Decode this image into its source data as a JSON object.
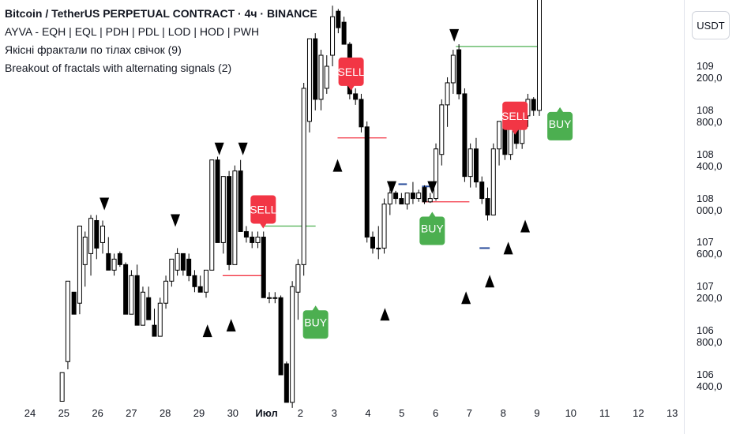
{
  "legend": {
    "title": "Bitcoin / TetherUS PERPETUAL CONTRACT · 4ч · BINANCE",
    "line2": "AYVA - EQH | EQL | PDH | PDL | LOD | HOD | PWH",
    "line3": "Якісні фрактали по тілах свічок (9)",
    "line4": "Breakout of fractals with alternating signals (2)"
  },
  "currency_button": "USDT",
  "colors": {
    "up_body": "#ffffff",
    "down_body": "#000000",
    "sell": "#f23645",
    "buy": "#4caf50",
    "level_red": "#f23645",
    "level_green": "#4caf50",
    "eq_blue": "#2a4d9b"
  },
  "chart_data": {
    "type": "candlestick",
    "yaxis_ticks": [
      "109 200,0",
      "108 800,0",
      "108 400,0",
      "108 000,0",
      "107 600,0",
      "107 200,0",
      "106 800,0",
      "106 400,0"
    ],
    "xaxis_ticks": [
      "24",
      "25",
      "26",
      "27",
      "28",
      "29",
      "30",
      "Июл",
      "2",
      "3",
      "4",
      "5",
      "6",
      "7",
      "8",
      "9",
      "10",
      "11",
      "12",
      "13"
    ],
    "ylim": [
      106100,
      109800
    ],
    "candles": [
      {
        "day": 24.95,
        "o": 106160,
        "h": 106420,
        "l": 106160,
        "c": 106420
      },
      {
        "day": 25.12,
        "o": 106520,
        "h": 107250,
        "l": 106450,
        "c": 107250
      },
      {
        "day": 25.3,
        "o": 107150,
        "h": 107150,
        "l": 106950,
        "c": 106950
      },
      {
        "day": 25.47,
        "o": 107050,
        "h": 107750,
        "l": 106950,
        "c": 107750
      },
      {
        "day": 25.63,
        "o": 107400,
        "h": 107700,
        "l": 107200,
        "c": 107650
      },
      {
        "day": 25.8,
        "o": 107500,
        "h": 107850,
        "l": 107300,
        "c": 107820
      },
      {
        "day": 25.97,
        "o": 107800,
        "h": 107850,
        "l": 107450,
        "c": 107550
      },
      {
        "day": 26.15,
        "o": 107600,
        "h": 107800,
        "l": 107500,
        "c": 107750
      },
      {
        "day": 26.32,
        "o": 107500,
        "h": 107650,
        "l": 107350,
        "c": 107350
      },
      {
        "day": 26.49,
        "o": 107350,
        "h": 107500,
        "l": 107300,
        "c": 107450
      },
      {
        "day": 26.66,
        "o": 107500,
        "h": 107520,
        "l": 107380,
        "c": 107400
      },
      {
        "day": 26.83,
        "o": 107400,
        "h": 107420,
        "l": 106950,
        "c": 106950
      },
      {
        "day": 27.0,
        "o": 106950,
        "h": 107350,
        "l": 106950,
        "c": 107300
      },
      {
        "day": 27.17,
        "o": 107300,
        "h": 107400,
        "l": 106850,
        "c": 106850
      },
      {
        "day": 27.34,
        "o": 106850,
        "h": 107200,
        "l": 106850,
        "c": 107150
      },
      {
        "day": 27.51,
        "o": 107100,
        "h": 107200,
        "l": 106900,
        "c": 106900
      },
      {
        "day": 27.68,
        "o": 106850,
        "h": 107000,
        "l": 106750,
        "c": 106750
      },
      {
        "day": 27.85,
        "o": 106750,
        "h": 107100,
        "l": 106750,
        "c": 107050
      },
      {
        "day": 28.02,
        "o": 107050,
        "h": 107300,
        "l": 107000,
        "c": 107250
      },
      {
        "day": 28.19,
        "o": 107250,
        "h": 107450,
        "l": 107200,
        "c": 107450
      },
      {
        "day": 28.36,
        "o": 107350,
        "h": 107550,
        "l": 107300,
        "c": 107500
      },
      {
        "day": 28.53,
        "o": 107500,
        "h": 107500,
        "l": 107300,
        "c": 107350
      },
      {
        "day": 28.7,
        "o": 107450,
        "h": 107500,
        "l": 107250,
        "c": 107300
      },
      {
        "day": 28.87,
        "o": 107300,
        "h": 107350,
        "l": 107150,
        "c": 107200
      },
      {
        "day": 29.04,
        "o": 107200,
        "h": 107300,
        "l": 107150,
        "c": 107150
      },
      {
        "day": 29.21,
        "o": 107150,
        "h": 107350,
        "l": 107100,
        "c": 107350
      },
      {
        "day": 29.38,
        "o": 107350,
        "h": 108350,
        "l": 107350,
        "c": 108350
      },
      {
        "day": 29.55,
        "o": 108350,
        "h": 108380,
        "l": 107600,
        "c": 107600
      },
      {
        "day": 29.72,
        "o": 107600,
        "h": 108200,
        "l": 107500,
        "c": 108200
      },
      {
        "day": 29.89,
        "o": 108200,
        "h": 108250,
        "l": 107350,
        "c": 107400
      },
      {
        "day": 30.06,
        "o": 107400,
        "h": 108300,
        "l": 107400,
        "c": 108250
      },
      {
        "day": 30.23,
        "o": 108250,
        "h": 108350,
        "l": 107700,
        "c": 107700
      },
      {
        "day": 30.4,
        "o": 107700,
        "h": 107750,
        "l": 107600,
        "c": 107650
      },
      {
        "day": 30.57,
        "o": 107650,
        "h": 107700,
        "l": 107550,
        "c": 107600
      },
      {
        "day": 30.74,
        "o": 107600,
        "h": 107700,
        "l": 107550,
        "c": 107650
      },
      {
        "day": 30.91,
        "o": 107650,
        "h": 107700,
        "l": 107100,
        "c": 107100
      },
      {
        "day": 31.08,
        "o": 107100,
        "h": 107150,
        "l": 107050,
        "c": 107100
      },
      {
        "day": 31.25,
        "o": 107100,
        "h": 107150,
        "l": 107050,
        "c": 107100
      },
      {
        "day": 31.42,
        "o": 107100,
        "h": 107120,
        "l": 106400,
        "c": 106400
      },
      {
        "day": 31.59,
        "o": 106500,
        "h": 106520,
        "l": 106150,
        "c": 106150
      },
      {
        "day": 31.76,
        "o": 106150,
        "h": 107250,
        "l": 106100,
        "c": 107200
      },
      {
        "day": 31.93,
        "o": 107150,
        "h": 107450,
        "l": 106900,
        "c": 107400
      },
      {
        "day": 32.1,
        "o": 107400,
        "h": 109050,
        "l": 107300,
        "c": 109000
      },
      {
        "day": 32.27,
        "o": 108700,
        "h": 109450,
        "l": 108600,
        "c": 109450
      },
      {
        "day": 32.44,
        "o": 109450,
        "h": 109500,
        "l": 108800,
        "c": 108900
      },
      {
        "day": 32.61,
        "o": 108900,
        "h": 109350,
        "l": 108800,
        "c": 109300
      },
      {
        "day": 32.78,
        "o": 109000,
        "h": 109300,
        "l": 108950,
        "c": 109200
      },
      {
        "day": 32.95,
        "o": 109300,
        "h": 109750,
        "l": 109200,
        "c": 109650
      },
      {
        "day": 33.12,
        "o": 109700,
        "h": 109720,
        "l": 109500,
        "c": 109550
      },
      {
        "day": 33.29,
        "o": 109600,
        "h": 109650,
        "l": 109400,
        "c": 109400
      },
      {
        "day": 33.46,
        "o": 109400,
        "h": 109420,
        "l": 108900,
        "c": 108950
      },
      {
        "day": 33.63,
        "o": 108950,
        "h": 109000,
        "l": 108850,
        "c": 108900
      },
      {
        "day": 33.8,
        "o": 108900,
        "h": 108950,
        "l": 108600,
        "c": 108650
      },
      {
        "day": 33.97,
        "o": 108650,
        "h": 108700,
        "l": 107600,
        "c": 107650
      },
      {
        "day": 34.14,
        "o": 107650,
        "h": 107700,
        "l": 107500,
        "c": 107550
      },
      {
        "day": 34.31,
        "o": 107550,
        "h": 107750,
        "l": 107450,
        "c": 107550
      },
      {
        "day": 34.48,
        "o": 107550,
        "h": 108000,
        "l": 107500,
        "c": 107950
      },
      {
        "day": 34.65,
        "o": 107950,
        "h": 108100,
        "l": 107850,
        "c": 108050
      },
      {
        "day": 34.82,
        "o": 108050,
        "h": 108070,
        "l": 107950,
        "c": 108000
      },
      {
        "day": 34.99,
        "o": 108000,
        "h": 108050,
        "l": 107950,
        "c": 107950
      },
      {
        "day": 35.16,
        "o": 107950,
        "h": 108050,
        "l": 107900,
        "c": 108050
      },
      {
        "day": 35.33,
        "o": 108050,
        "h": 108150,
        "l": 107950,
        "c": 108000
      },
      {
        "day": 35.5,
        "o": 108000,
        "h": 108080,
        "l": 107970,
        "c": 108050
      },
      {
        "day": 35.67,
        "o": 108100,
        "h": 108120,
        "l": 107950,
        "c": 107970
      },
      {
        "day": 35.84,
        "o": 107970,
        "h": 108050,
        "l": 107960,
        "c": 108000
      },
      {
        "day": 36.01,
        "o": 108000,
        "h": 108500,
        "l": 107980,
        "c": 108450
      },
      {
        "day": 36.18,
        "o": 108400,
        "h": 108900,
        "l": 108300,
        "c": 108850
      },
      {
        "day": 36.35,
        "o": 108850,
        "h": 109100,
        "l": 108650,
        "c": 109050
      },
      {
        "day": 36.52,
        "o": 109050,
        "h": 109350,
        "l": 108950,
        "c": 109300
      },
      {
        "day": 36.69,
        "o": 109350,
        "h": 109400,
        "l": 108900,
        "c": 108950
      },
      {
        "day": 36.86,
        "o": 108950,
        "h": 109000,
        "l": 108150,
        "c": 108200
      },
      {
        "day": 37.03,
        "o": 108200,
        "h": 108500,
        "l": 108100,
        "c": 108450
      },
      {
        "day": 37.2,
        "o": 108450,
        "h": 108550,
        "l": 108100,
        "c": 108150
      },
      {
        "day": 37.37,
        "o": 108150,
        "h": 108200,
        "l": 107950,
        "c": 108000
      },
      {
        "day": 37.54,
        "o": 108000,
        "h": 108100,
        "l": 107800,
        "c": 107850
      },
      {
        "day": 37.71,
        "o": 107850,
        "h": 108500,
        "l": 107850,
        "c": 108450
      },
      {
        "day": 37.88,
        "o": 108450,
        "h": 108700,
        "l": 108300,
        "c": 108700
      },
      {
        "day": 38.05,
        "o": 108700,
        "h": 108750,
        "l": 108350,
        "c": 108400
      },
      {
        "day": 38.22,
        "o": 108400,
        "h": 108750,
        "l": 108350,
        "c": 108700
      },
      {
        "day": 38.39,
        "o": 108700,
        "h": 108750,
        "l": 108450,
        "c": 108500
      },
      {
        "day": 38.56,
        "o": 108500,
        "h": 108800,
        "l": 108450,
        "c": 108750
      },
      {
        "day": 38.73,
        "o": 108750,
        "h": 108950,
        "l": 108650,
        "c": 108900
      },
      {
        "day": 38.9,
        "o": 108900,
        "h": 108920,
        "l": 108750,
        "c": 108800
      },
      {
        "day": 39.07,
        "o": 108800,
        "h": 109850,
        "l": 108750,
        "c": 109850
      }
    ],
    "signals": [
      {
        "label": "SELL",
        "type": "sell",
        "day": 30.9,
        "price": 107700
      },
      {
        "label": "BUY",
        "type": "buy",
        "day": 32.45,
        "price": 107100
      },
      {
        "label": "SELL",
        "type": "sell",
        "day": 33.5,
        "price": 108950
      },
      {
        "label": "BUY",
        "type": "buy",
        "day": 35.9,
        "price": 107950
      },
      {
        "label": "SELL",
        "type": "sell",
        "day": 38.35,
        "price": 108550
      },
      {
        "label": "BUY",
        "type": "buy",
        "day": 39.68,
        "price": 108900
      }
    ],
    "fractals_down": [
      {
        "day": 26.2,
        "price": 107950
      },
      {
        "day": 28.3,
        "price": 107800
      },
      {
        "day": 29.6,
        "price": 108450
      },
      {
        "day": 30.3,
        "price": 108450
      },
      {
        "day": 34.7,
        "price": 108100
      },
      {
        "day": 35.9,
        "price": 108100
      },
      {
        "day": 36.55,
        "price": 109480
      }
    ],
    "fractals_up": [
      {
        "day": 29.25,
        "price": 106800
      },
      {
        "day": 29.95,
        "price": 106850
      },
      {
        "day": 33.1,
        "price": 108300
      },
      {
        "day": 34.5,
        "price": 106950
      },
      {
        "day": 36.9,
        "price": 107100
      },
      {
        "day": 37.6,
        "price": 107250
      },
      {
        "day": 38.15,
        "price": 107550
      },
      {
        "day": 38.65,
        "price": 107750
      }
    ],
    "levels": [
      {
        "color": "red",
        "price": 107300,
        "from": 29.7,
        "to": 30.9
      },
      {
        "color": "green",
        "price": 107750,
        "from": 30.9,
        "to": 32.45
      },
      {
        "color": "red",
        "price": 108550,
        "from": 33.1,
        "to": 34.55
      },
      {
        "color": "red",
        "price": 107970,
        "from": 35.6,
        "to": 37.0
      },
      {
        "color": "green",
        "price": 109380,
        "from": 36.6,
        "to": 39.07
      }
    ],
    "eq_marks": [
      {
        "price": 108130,
        "from": 34.9,
        "to": 35.15
      },
      {
        "price": 108110,
        "from": 35.6,
        "to": 36.0
      },
      {
        "price": 107550,
        "from": 37.3,
        "to": 37.6
      }
    ]
  }
}
